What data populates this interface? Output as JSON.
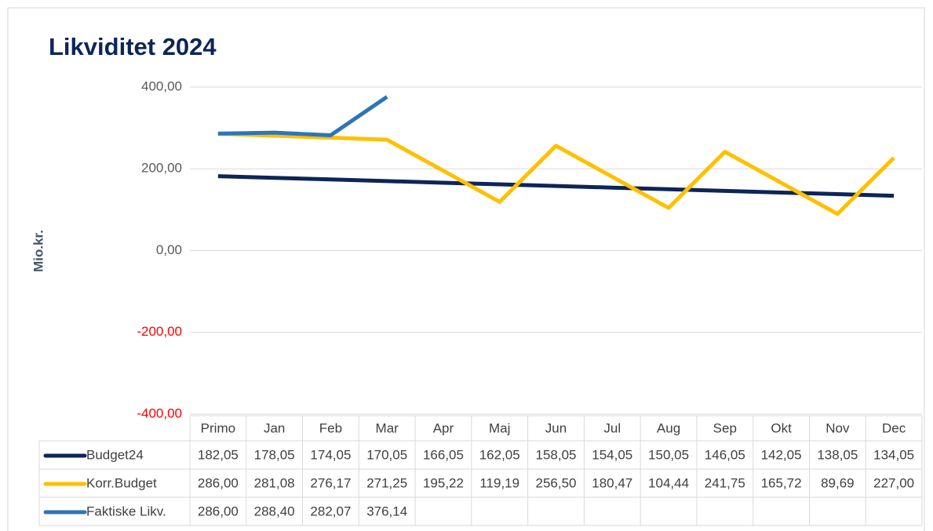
{
  "chart_data": {
    "type": "line",
    "title": "Likviditet 2024",
    "y_label": "Mio.kr.",
    "categories": [
      "Primo",
      "Jan",
      "Feb",
      "Mar",
      "Apr",
      "Maj",
      "Jun",
      "Jul",
      "Aug",
      "Sep",
      "Okt",
      "Nov",
      "Dec"
    ],
    "series": [
      {
        "name": "Budget24",
        "color": "#0d2557",
        "values": [
          182.05,
          178.05,
          174.05,
          170.05,
          166.05,
          162.05,
          158.05,
          154.05,
          150.05,
          146.05,
          142.05,
          138.05,
          134.05
        ],
        "value_labels": [
          "182,05",
          "178,05",
          "174,05",
          "170,05",
          "166,05",
          "162,05",
          "158,05",
          "154,05",
          "150,05",
          "146,05",
          "142,05",
          "138,05",
          "134,05"
        ]
      },
      {
        "name": "Korr.Budget",
        "color": "#ffc000",
        "values": [
          286.0,
          281.08,
          276.17,
          271.25,
          195.22,
          119.19,
          256.5,
          180.47,
          104.44,
          241.75,
          165.72,
          89.69,
          227.0
        ],
        "value_labels": [
          "286,00",
          "281,08",
          "276,17",
          "271,25",
          "195,22",
          "119,19",
          "256,50",
          "180,47",
          "104,44",
          "241,75",
          "165,72",
          "89,69",
          "227,00"
        ]
      },
      {
        "name": "Faktiske Likv.",
        "color": "#2e75b6",
        "values": [
          286.0,
          288.4,
          282.07,
          376.14,
          null,
          null,
          null,
          null,
          null,
          null,
          null,
          null,
          null
        ],
        "value_labels": [
          "286,00",
          "288,40",
          "282,07",
          "376,14",
          null,
          null,
          null,
          null,
          null,
          null,
          null,
          null,
          null
        ]
      }
    ],
    "ylim": [
      -400,
      400
    ],
    "yticks": [
      {
        "value": -400,
        "label": "-400,00"
      },
      {
        "value": -200,
        "label": "-200,00"
      },
      {
        "value": 0,
        "label": "0,00"
      },
      {
        "value": 200,
        "label": "200,00"
      },
      {
        "value": 400,
        "label": "400,00"
      }
    ],
    "grid": true,
    "negative_tick_color": "#ff0000",
    "legend": "data-table"
  }
}
